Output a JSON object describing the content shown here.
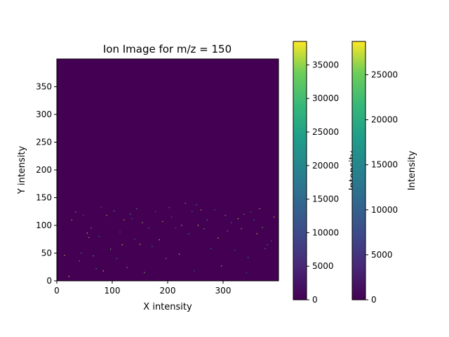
{
  "chart_data": {
    "type": "heatmap",
    "title": "Ion Image for m/z = 150",
    "xlabel": "X intensity",
    "ylabel": "Y intensity",
    "xlim": [
      0,
      400
    ],
    "ylim": [
      0,
      400
    ],
    "xticks": [
      0,
      100,
      200,
      300
    ],
    "yticks": [
      0,
      50,
      100,
      150,
      200,
      250,
      300,
      350
    ],
    "grid": false,
    "colormap": "viridis",
    "background_value": 0,
    "colorbars": [
      {
        "label": "Intensity",
        "range": [
          0,
          38500
        ],
        "ticks": [
          0,
          5000,
          10000,
          15000,
          20000,
          25000,
          30000,
          35000
        ]
      },
      {
        "label": "Intensity",
        "range": [
          0,
          28700
        ],
        "ticks": [
          0,
          5000,
          10000,
          15000,
          20000,
          25000
        ]
      }
    ],
    "hotspots": [
      {
        "x": 22,
        "y": 8
      },
      {
        "x": 27,
        "y": 110
      },
      {
        "x": 34,
        "y": 124
      },
      {
        "x": 41,
        "y": 36
      },
      {
        "x": 44,
        "y": 50
      },
      {
        "x": 48,
        "y": 118
      },
      {
        "x": 55,
        "y": 86
      },
      {
        "x": 58,
        "y": 78
      },
      {
        "x": 62,
        "y": 95
      },
      {
        "x": 71,
        "y": 22
      },
      {
        "x": 76,
        "y": 80
      },
      {
        "x": 80,
        "y": 133
      },
      {
        "x": 84,
        "y": 18
      },
      {
        "x": 90,
        "y": 118
      },
      {
        "x": 97,
        "y": 57
      },
      {
        "x": 103,
        "y": 126
      },
      {
        "x": 108,
        "y": 40
      },
      {
        "x": 114,
        "y": 88
      },
      {
        "x": 118,
        "y": 65
      },
      {
        "x": 121,
        "y": 110
      },
      {
        "x": 127,
        "y": 24
      },
      {
        "x": 133,
        "y": 120
      },
      {
        "x": 136,
        "y": 112
      },
      {
        "x": 141,
        "y": 75
      },
      {
        "x": 150,
        "y": 66
      },
      {
        "x": 154,
        "y": 105
      },
      {
        "x": 158,
        "y": 15
      },
      {
        "x": 166,
        "y": 95
      },
      {
        "x": 172,
        "y": 62
      },
      {
        "x": 178,
        "y": 125
      },
      {
        "x": 185,
        "y": 74
      },
      {
        "x": 191,
        "y": 107
      },
      {
        "x": 197,
        "y": 40
      },
      {
        "x": 203,
        "y": 132
      },
      {
        "x": 207,
        "y": 115
      },
      {
        "x": 214,
        "y": 95
      },
      {
        "x": 221,
        "y": 48
      },
      {
        "x": 225,
        "y": 100
      },
      {
        "x": 232,
        "y": 140
      },
      {
        "x": 238,
        "y": 85
      },
      {
        "x": 244,
        "y": 125
      },
      {
        "x": 248,
        "y": 18
      },
      {
        "x": 255,
        "y": 100
      },
      {
        "x": 260,
        "y": 128
      },
      {
        "x": 266,
        "y": 94
      },
      {
        "x": 271,
        "y": 110
      },
      {
        "x": 278,
        "y": 58
      },
      {
        "x": 285,
        "y": 128
      },
      {
        "x": 291,
        "y": 77
      },
      {
        "x": 297,
        "y": 27
      },
      {
        "x": 304,
        "y": 118
      },
      {
        "x": 308,
        "y": 90
      },
      {
        "x": 315,
        "y": 105
      },
      {
        "x": 321,
        "y": 55
      },
      {
        "x": 327,
        "y": 112
      },
      {
        "x": 333,
        "y": 94
      },
      {
        "x": 338,
        "y": 120
      },
      {
        "x": 345,
        "y": 42
      },
      {
        "x": 350,
        "y": 124
      },
      {
        "x": 356,
        "y": 110
      },
      {
        "x": 361,
        "y": 85
      },
      {
        "x": 366,
        "y": 130
      },
      {
        "x": 371,
        "y": 96
      },
      {
        "x": 376,
        "y": 58
      },
      {
        "x": 380,
        "y": 65
      },
      {
        "x": 387,
        "y": 72
      },
      {
        "x": 392,
        "y": 115
      },
      {
        "x": 14,
        "y": 46
      },
      {
        "x": 66,
        "y": 45
      },
      {
        "x": 144,
        "y": 130
      },
      {
        "x": 252,
        "y": 137
      },
      {
        "x": 342,
        "y": 15
      }
    ]
  }
}
